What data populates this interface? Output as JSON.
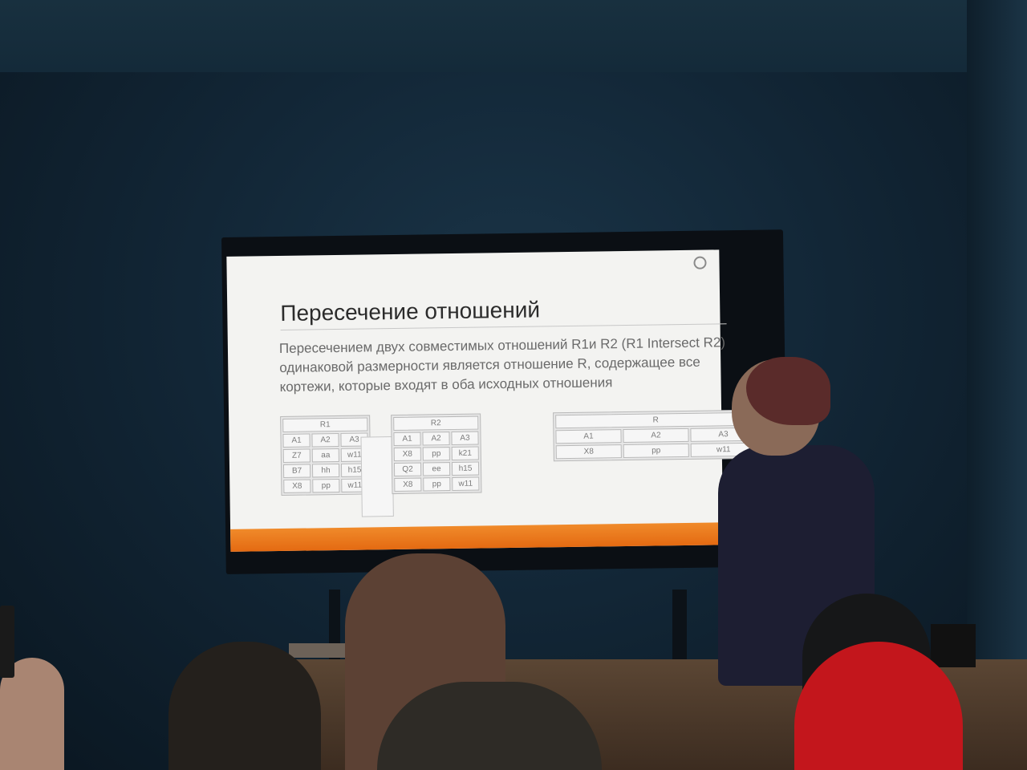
{
  "slide": {
    "title": "Пересечение отношений",
    "body": "Пересечением двух совместимых отношений R1и R2 (R1 Intersect R2) одинаковой размерности является отношение R, содержащее все кортежи, которые входят в оба исходных отношения"
  },
  "tables": {
    "r1": {
      "name": "R1",
      "headers": [
        "A1",
        "A2",
        "A3"
      ],
      "rows": [
        [
          "Z7",
          "aa",
          "w11"
        ],
        [
          "B7",
          "hh",
          "h15"
        ],
        [
          "X8",
          "pp",
          "w11"
        ]
      ]
    },
    "r2": {
      "name": "R2",
      "headers": [
        "A1",
        "A2",
        "A3"
      ],
      "rows": [
        [
          "X8",
          "pp",
          "k21"
        ],
        [
          "Q2",
          "ee",
          "h15"
        ],
        [
          "X8",
          "pp",
          "w11"
        ]
      ]
    },
    "r": {
      "name": "R",
      "headers": [
        "A1",
        "A2",
        "A3"
      ],
      "rows": [
        [
          "X8",
          "pp",
          "w11"
        ]
      ]
    }
  },
  "colors": {
    "accent_bar": "#e8731a",
    "slide_background": "#f3f3f1",
    "wall": "#122636"
  }
}
